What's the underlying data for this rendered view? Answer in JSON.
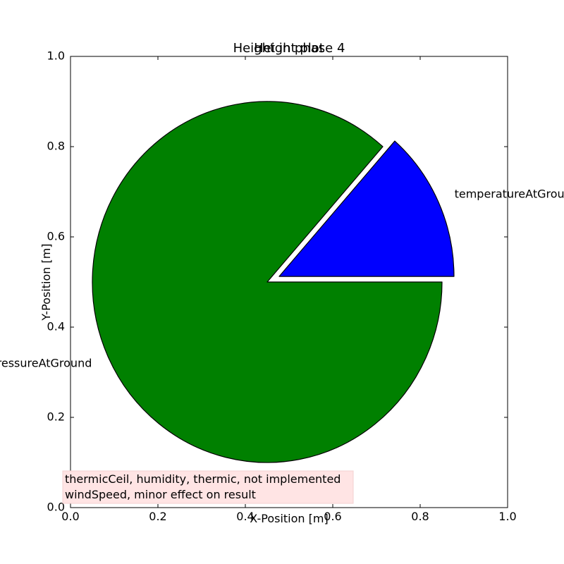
{
  "chart_data": {
    "type": "pie",
    "titles": [
      "Height plot",
      "Height in phase 4"
    ],
    "xlabel": "X-Position [m]",
    "ylabel": "Y-Position [m]",
    "xlim": [
      0.0,
      1.0
    ],
    "ylim": [
      0.0,
      1.0
    ],
    "xticks": [
      "0.0",
      "0.2",
      "0.4",
      "0.6",
      "0.8",
      "1.0"
    ],
    "yticks": [
      "0.0",
      "0.2",
      "0.4",
      "0.6",
      "0.8",
      "1.0"
    ],
    "grid": false,
    "pie_center": [
      0.45,
      0.5
    ],
    "pie_radius": 0.4,
    "start_angle_deg": 0,
    "slices": [
      {
        "label": "temperatureAtGround",
        "percent": 13.5,
        "color": "#0000ff",
        "explode": 0.03
      },
      {
        "label": "pressureAtGround",
        "percent": 86.5,
        "color": "#008000",
        "explode": 0.0
      }
    ],
    "annotation": {
      "lines": [
        "thermicCeil, humidity, thermic, not implemented",
        "windSpeed, minor effect on result"
      ],
      "background": "#ffe4e4"
    }
  }
}
